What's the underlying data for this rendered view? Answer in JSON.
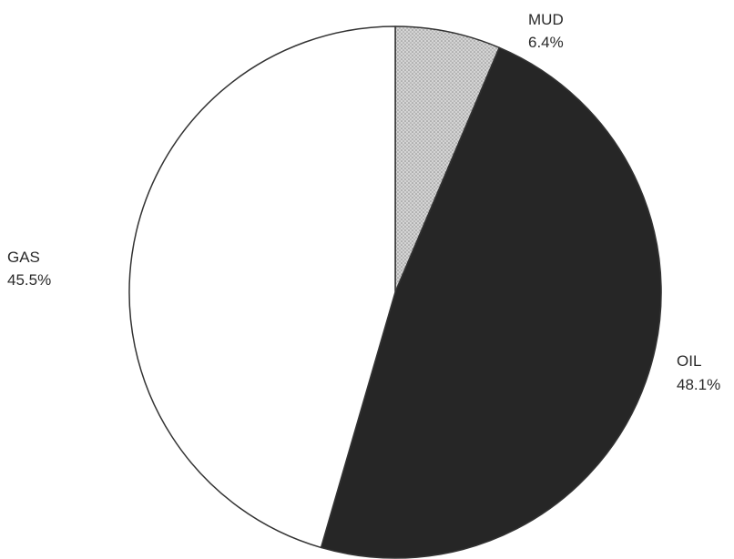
{
  "chart_data": {
    "type": "pie",
    "title": "",
    "start_angle_deg": 0,
    "direction": "clockwise",
    "slices": [
      {
        "name": "MUD",
        "value": 6.4,
        "label": "6.4%",
        "color": "#c2c2c2"
      },
      {
        "name": "OIL",
        "value": 48.1,
        "label": "48.1%",
        "color": "#262626"
      },
      {
        "name": "GAS",
        "value": 45.5,
        "label": "45.5%",
        "color": "#ffffff"
      }
    ],
    "outline_color": "#333333",
    "mud_pattern": "stippled"
  }
}
